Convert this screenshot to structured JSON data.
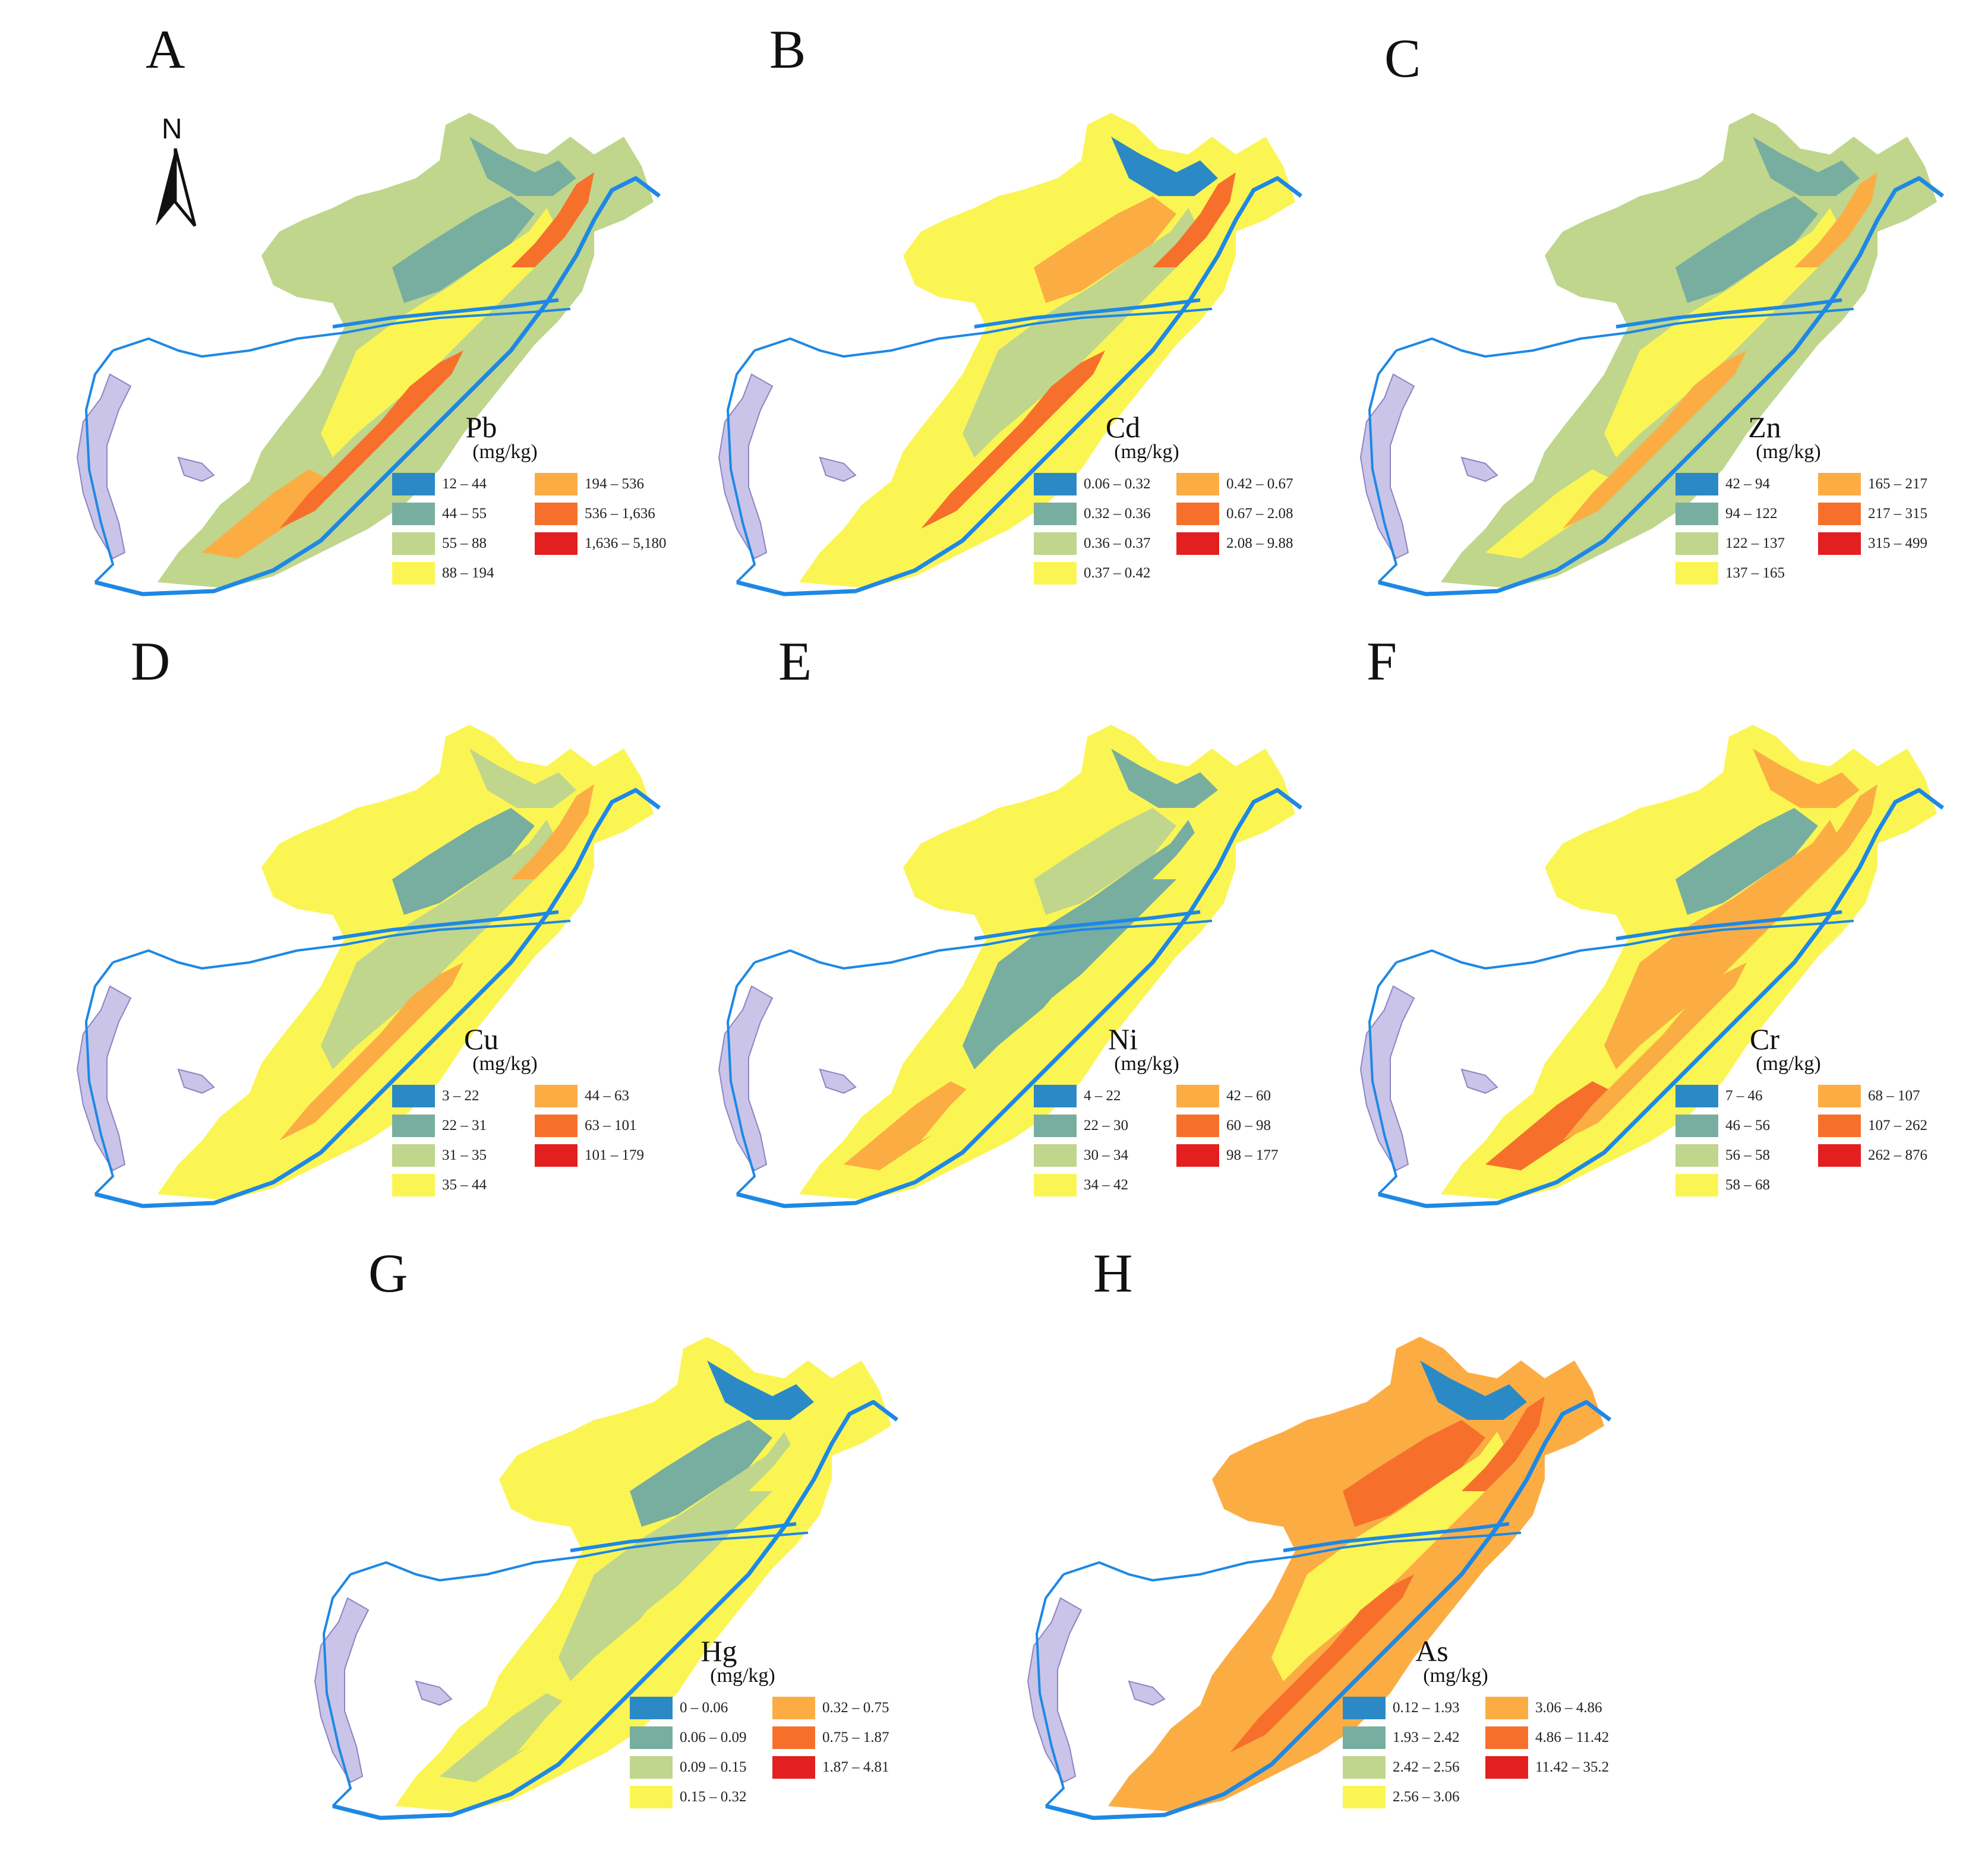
{
  "palette": [
    "#2b8ac6",
    "#78aea0",
    "#bfd68c",
    "#fbf553",
    "#fbad44",
    "#f6702b",
    "#e41f1f"
  ],
  "lake_color": "#cac4e8",
  "river_color": "#1e88e5",
  "north_label": "N",
  "panels": [
    {
      "letter": "A",
      "element": "Pb",
      "unit": "(mg/kg)",
      "ranges": [
        "12 – 44",
        "44 – 55",
        "55 – 88",
        "88 – 194",
        "194 – 536",
        "536 – 1,636",
        "1,636 – 5,180"
      ]
    },
    {
      "letter": "B",
      "element": "Cd",
      "unit": "(mg/kg)",
      "ranges": [
        "0.06 – 0.32",
        "0.32 – 0.36",
        "0.36 – 0.37",
        "0.37 – 0.42",
        "0.42 – 0.67",
        "0.67 – 2.08",
        "2.08 – 9.88"
      ]
    },
    {
      "letter": "C",
      "element": "Zn",
      "unit": "(mg/kg)",
      "ranges": [
        "42 – 94",
        "94 – 122",
        "122 – 137",
        "137 – 165",
        "165 – 217",
        "217 – 315",
        "315 – 499"
      ]
    },
    {
      "letter": "D",
      "element": "Cu",
      "unit": "(mg/kg)",
      "ranges": [
        "3 – 22",
        "22 – 31",
        "31 – 35",
        "35 – 44",
        "44 – 63",
        "63 – 101",
        "101 – 179"
      ]
    },
    {
      "letter": "E",
      "element": "Ni",
      "unit": "(mg/kg)",
      "ranges": [
        "4 – 22",
        "22 – 30",
        "30 – 34",
        "34 – 42",
        "42 – 60",
        "60 – 98",
        "98 – 177"
      ]
    },
    {
      "letter": "F",
      "element": "Cr",
      "unit": "(mg/kg)",
      "ranges": [
        "7 – 46",
        "46 – 56",
        "56 – 58",
        "58 – 68",
        "68 – 107",
        "107 – 262",
        "262 – 876"
      ]
    },
    {
      "letter": "G",
      "element": "Hg",
      "unit": "(mg/kg)",
      "ranges": [
        "0 – 0.06",
        "0.06 – 0.09",
        "0.09 – 0.15",
        "0.15 – 0.32",
        "0.32 – 0.75",
        "0.75 – 1.87",
        "1.87 – 4.81"
      ]
    },
    {
      "letter": "H",
      "element": "As",
      "unit": "(mg/kg)",
      "ranges": [
        "0.12 – 1.93",
        "1.93 – 2.42",
        "2.42 – 2.56",
        "2.56 – 3.06",
        "3.06 – 4.86",
        "4.86 – 11.42",
        "11.42 – 35.2"
      ]
    }
  ]
}
